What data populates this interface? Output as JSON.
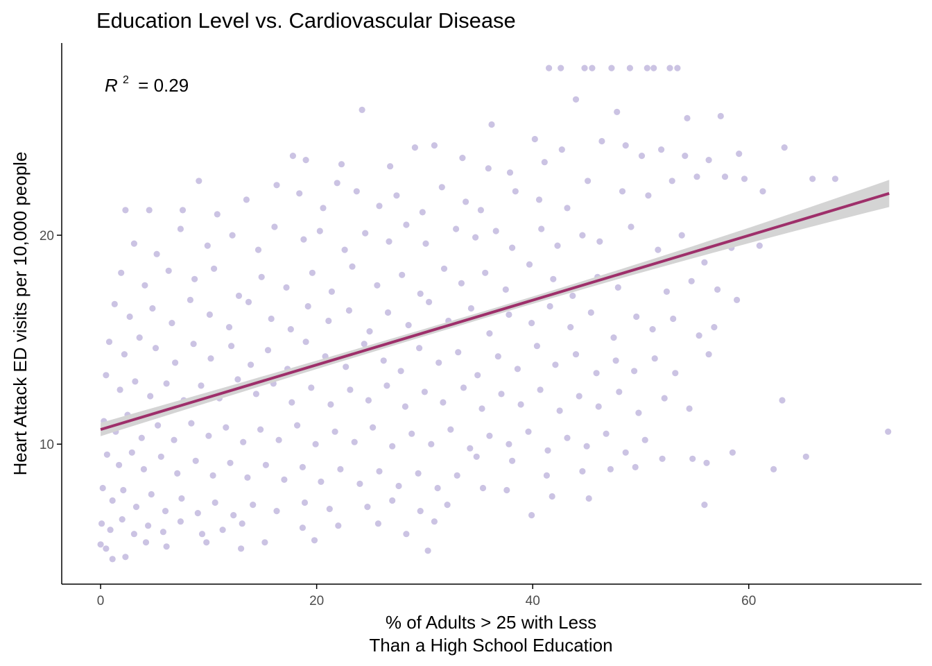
{
  "chart_data": {
    "type": "scatter",
    "title": "Education Level vs. Cardiovascular Disease",
    "xlabel_lines": [
      "% of Adults > 25 with Less",
      "Than a High School Education"
    ],
    "ylabel": "Heart Attack ED visits per 10,000 people",
    "xlim": [
      -3.6,
      76.0
    ],
    "ylim": [
      3.3,
      29.2
    ],
    "x_ticks": [
      0,
      20,
      40,
      60
    ],
    "y_ticks": [
      10,
      20
    ],
    "grid": false,
    "annotation": {
      "symbol": "R",
      "superscript": "2",
      "text": "= 0.29"
    },
    "point_color": "#cbc3e3",
    "trend_color": "#9e2f6a",
    "band_color": "#d4d4d4",
    "trend": {
      "x_start": 0,
      "y_start": 10.7,
      "x_end": 73,
      "y_end": 22.0,
      "band_half_width_start": 0.32,
      "band_half_width_mid": 0.17,
      "band_half_width_end": 0.65
    },
    "points": [
      [
        41.5,
        28.0
      ],
      [
        42.6,
        28.0
      ],
      [
        44.8,
        28.0
      ],
      [
        45.5,
        28.0
      ],
      [
        47.3,
        28.0
      ],
      [
        49.0,
        28.0
      ],
      [
        50.6,
        28.0
      ],
      [
        51.2,
        28.0
      ],
      [
        52.7,
        28.0
      ],
      [
        53.4,
        28.0
      ],
      [
        24.2,
        26.0
      ],
      [
        44.0,
        26.5
      ],
      [
        47.8,
        25.9
      ],
      [
        36.2,
        25.3
      ],
      [
        54.3,
        25.6
      ],
      [
        57.4,
        25.7
      ],
      [
        63.3,
        24.2
      ],
      [
        17.8,
        23.8
      ],
      [
        19.0,
        23.6
      ],
      [
        22.3,
        23.4
      ],
      [
        26.8,
        23.3
      ],
      [
        29.1,
        24.2
      ],
      [
        30.9,
        24.3
      ],
      [
        33.5,
        23.7
      ],
      [
        35.9,
        23.2
      ],
      [
        37.9,
        23.0
      ],
      [
        40.2,
        24.6
      ],
      [
        41.1,
        23.5
      ],
      [
        42.7,
        24.1
      ],
      [
        46.4,
        24.5
      ],
      [
        48.6,
        24.3
      ],
      [
        50.1,
        23.8
      ],
      [
        51.9,
        24.1
      ],
      [
        54.1,
        23.8
      ],
      [
        56.3,
        23.6
      ],
      [
        59.1,
        23.9
      ],
      [
        2.3,
        21.2
      ],
      [
        4.5,
        21.2
      ],
      [
        7.6,
        21.2
      ],
      [
        9.1,
        22.6
      ],
      [
        10.8,
        21.0
      ],
      [
        13.5,
        21.7
      ],
      [
        16.3,
        22.4
      ],
      [
        18.4,
        22.0
      ],
      [
        20.6,
        21.3
      ],
      [
        21.9,
        22.5
      ],
      [
        23.7,
        22.1
      ],
      [
        25.8,
        21.4
      ],
      [
        27.4,
        21.9
      ],
      [
        29.8,
        21.1
      ],
      [
        31.6,
        22.3
      ],
      [
        33.8,
        21.6
      ],
      [
        35.2,
        21.2
      ],
      [
        38.4,
        22.1
      ],
      [
        40.6,
        21.7
      ],
      [
        43.2,
        21.3
      ],
      [
        45.1,
        22.6
      ],
      [
        48.3,
        22.1
      ],
      [
        50.7,
        21.9
      ],
      [
        52.9,
        22.6
      ],
      [
        55.2,
        22.8
      ],
      [
        57.8,
        22.8
      ],
      [
        59.6,
        22.7
      ],
      [
        61.3,
        22.1
      ],
      [
        65.9,
        22.7
      ],
      [
        68.0,
        22.7
      ],
      [
        3.1,
        19.6
      ],
      [
        5.2,
        19.1
      ],
      [
        7.4,
        20.3
      ],
      [
        9.9,
        19.5
      ],
      [
        12.2,
        20.0
      ],
      [
        14.6,
        19.3
      ],
      [
        16.1,
        20.4
      ],
      [
        18.8,
        19.8
      ],
      [
        20.3,
        20.2
      ],
      [
        22.6,
        19.3
      ],
      [
        24.5,
        20.1
      ],
      [
        26.7,
        19.7
      ],
      [
        28.3,
        20.5
      ],
      [
        30.1,
        19.6
      ],
      [
        32.9,
        20.3
      ],
      [
        34.7,
        19.9
      ],
      [
        36.6,
        20.2
      ],
      [
        38.1,
        19.4
      ],
      [
        40.8,
        20.3
      ],
      [
        42.3,
        19.5
      ],
      [
        44.6,
        20.0
      ],
      [
        46.2,
        19.7
      ],
      [
        49.1,
        20.4
      ],
      [
        51.6,
        19.3
      ],
      [
        53.8,
        20.0
      ],
      [
        55.9,
        18.7
      ],
      [
        58.4,
        19.4
      ],
      [
        61.0,
        19.5
      ],
      [
        1.9,
        18.2
      ],
      [
        4.1,
        17.6
      ],
      [
        6.3,
        18.3
      ],
      [
        8.7,
        17.9
      ],
      [
        10.5,
        18.4
      ],
      [
        12.8,
        17.1
      ],
      [
        14.9,
        18.0
      ],
      [
        17.2,
        17.5
      ],
      [
        19.6,
        18.2
      ],
      [
        21.4,
        17.3
      ],
      [
        23.3,
        18.5
      ],
      [
        25.6,
        17.6
      ],
      [
        27.9,
        18.1
      ],
      [
        29.6,
        17.2
      ],
      [
        31.8,
        18.4
      ],
      [
        33.4,
        17.7
      ],
      [
        35.6,
        18.2
      ],
      [
        37.5,
        17.4
      ],
      [
        39.7,
        18.6
      ],
      [
        41.9,
        17.9
      ],
      [
        43.7,
        17.1
      ],
      [
        46.0,
        18.0
      ],
      [
        47.9,
        17.5
      ],
      [
        50.2,
        18.4
      ],
      [
        52.4,
        17.3
      ],
      [
        54.7,
        17.8
      ],
      [
        57.1,
        17.4
      ],
      [
        58.9,
        16.9
      ],
      [
        1.3,
        16.7
      ],
      [
        2.7,
        16.1
      ],
      [
        4.8,
        16.5
      ],
      [
        6.6,
        15.8
      ],
      [
        8.3,
        16.9
      ],
      [
        10.1,
        16.2
      ],
      [
        11.9,
        15.6
      ],
      [
        13.7,
        16.8
      ],
      [
        15.8,
        16.0
      ],
      [
        17.6,
        15.5
      ],
      [
        19.2,
        16.6
      ],
      [
        21.1,
        15.9
      ],
      [
        23.0,
        16.4
      ],
      [
        24.9,
        15.4
      ],
      [
        26.6,
        16.3
      ],
      [
        28.5,
        15.7
      ],
      [
        30.4,
        16.8
      ],
      [
        32.2,
        15.9
      ],
      [
        34.3,
        16.5
      ],
      [
        36.0,
        15.3
      ],
      [
        37.8,
        16.2
      ],
      [
        39.9,
        15.8
      ],
      [
        41.6,
        16.6
      ],
      [
        43.5,
        15.6
      ],
      [
        45.4,
        16.3
      ],
      [
        47.5,
        15.1
      ],
      [
        49.6,
        16.1
      ],
      [
        51.1,
        15.5
      ],
      [
        53.0,
        16.0
      ],
      [
        55.4,
        15.2
      ],
      [
        56.8,
        15.6
      ],
      [
        0.8,
        14.9
      ],
      [
        2.2,
        14.3
      ],
      [
        3.6,
        15.1
      ],
      [
        5.1,
        14.6
      ],
      [
        6.9,
        13.9
      ],
      [
        8.6,
        14.8
      ],
      [
        10.2,
        14.1
      ],
      [
        12.1,
        14.7
      ],
      [
        13.9,
        13.8
      ],
      [
        15.5,
        14.5
      ],
      [
        17.3,
        13.6
      ],
      [
        19.0,
        14.9
      ],
      [
        20.8,
        14.2
      ],
      [
        22.7,
        13.7
      ],
      [
        24.4,
        14.8
      ],
      [
        26.2,
        14.0
      ],
      [
        27.8,
        13.5
      ],
      [
        29.5,
        14.6
      ],
      [
        31.3,
        13.9
      ],
      [
        33.1,
        14.4
      ],
      [
        34.9,
        13.3
      ],
      [
        36.8,
        14.2
      ],
      [
        38.6,
        13.6
      ],
      [
        40.4,
        14.7
      ],
      [
        42.1,
        13.8
      ],
      [
        44.0,
        14.3
      ],
      [
        45.9,
        13.4
      ],
      [
        47.7,
        14.0
      ],
      [
        49.4,
        13.5
      ],
      [
        51.3,
        14.1
      ],
      [
        53.2,
        13.4
      ],
      [
        56.3,
        14.3
      ],
      [
        0.5,
        13.3
      ],
      [
        1.8,
        12.6
      ],
      [
        3.2,
        13.0
      ],
      [
        4.6,
        12.3
      ],
      [
        6.1,
        12.9
      ],
      [
        7.7,
        12.1
      ],
      [
        9.3,
        12.8
      ],
      [
        11.0,
        12.2
      ],
      [
        12.7,
        13.1
      ],
      [
        14.4,
        12.4
      ],
      [
        16.0,
        12.9
      ],
      [
        17.7,
        12.0
      ],
      [
        19.5,
        12.7
      ],
      [
        21.3,
        11.9
      ],
      [
        23.1,
        12.6
      ],
      [
        24.8,
        12.1
      ],
      [
        26.5,
        12.8
      ],
      [
        28.2,
        11.8
      ],
      [
        30.0,
        12.5
      ],
      [
        31.7,
        12.0
      ],
      [
        33.6,
        12.7
      ],
      [
        35.3,
        11.7
      ],
      [
        37.1,
        12.4
      ],
      [
        38.9,
        11.9
      ],
      [
        40.7,
        12.6
      ],
      [
        42.5,
        11.6
      ],
      [
        44.3,
        12.3
      ],
      [
        46.1,
        11.8
      ],
      [
        48.0,
        12.5
      ],
      [
        49.8,
        11.5
      ],
      [
        52.2,
        12.2
      ],
      [
        54.5,
        11.7
      ],
      [
        63.1,
        12.1
      ],
      [
        0.3,
        11.1
      ],
      [
        1.4,
        10.6
      ],
      [
        2.5,
        11.4
      ],
      [
        3.8,
        10.3
      ],
      [
        5.3,
        10.9
      ],
      [
        6.8,
        10.2
      ],
      [
        8.4,
        11.0
      ],
      [
        10.0,
        10.4
      ],
      [
        11.6,
        10.8
      ],
      [
        13.2,
        10.1
      ],
      [
        14.8,
        10.7
      ],
      [
        16.5,
        10.2
      ],
      [
        18.2,
        10.9
      ],
      [
        19.9,
        10.0
      ],
      [
        21.7,
        10.6
      ],
      [
        23.5,
        10.1
      ],
      [
        25.2,
        10.8
      ],
      [
        27.0,
        9.9
      ],
      [
        28.8,
        10.5
      ],
      [
        30.6,
        10.0
      ],
      [
        32.4,
        10.7
      ],
      [
        34.2,
        9.8
      ],
      [
        36.0,
        10.4
      ],
      [
        37.8,
        10.0
      ],
      [
        39.6,
        10.6
      ],
      [
        41.4,
        9.7
      ],
      [
        43.2,
        10.3
      ],
      [
        45.0,
        9.9
      ],
      [
        46.8,
        10.5
      ],
      [
        48.6,
        9.6
      ],
      [
        50.4,
        10.2
      ],
      [
        72.9,
        10.6
      ],
      [
        0.6,
        9.5
      ],
      [
        1.7,
        9.0
      ],
      [
        2.9,
        9.6
      ],
      [
        4.0,
        8.8
      ],
      [
        5.6,
        9.4
      ],
      [
        7.1,
        8.6
      ],
      [
        8.8,
        9.2
      ],
      [
        10.4,
        8.5
      ],
      [
        12.0,
        9.1
      ],
      [
        13.6,
        8.4
      ],
      [
        15.3,
        9.0
      ],
      [
        17.0,
        8.3
      ],
      [
        18.7,
        8.9
      ],
      [
        20.4,
        8.2
      ],
      [
        22.2,
        8.8
      ],
      [
        24.0,
        8.1
      ],
      [
        25.8,
        8.7
      ],
      [
        27.6,
        8.0
      ],
      [
        29.4,
        8.6
      ],
      [
        31.2,
        7.9
      ],
      [
        33.0,
        8.5
      ],
      [
        34.8,
        9.4
      ],
      [
        38.1,
        9.2
      ],
      [
        41.3,
        8.5
      ],
      [
        44.6,
        8.7
      ],
      [
        47.2,
        8.8
      ],
      [
        49.5,
        8.9
      ],
      [
        52.0,
        9.3
      ],
      [
        54.8,
        9.3
      ],
      [
        56.1,
        9.1
      ],
      [
        58.5,
        9.6
      ],
      [
        62.3,
        8.8
      ],
      [
        65.3,
        9.4
      ],
      [
        0.2,
        7.9
      ],
      [
        1.1,
        7.3
      ],
      [
        2.1,
        7.8
      ],
      [
        3.3,
        7.0
      ],
      [
        4.7,
        7.6
      ],
      [
        6.0,
        6.8
      ],
      [
        7.5,
        7.4
      ],
      [
        9.0,
        6.7
      ],
      [
        10.6,
        7.2
      ],
      [
        12.3,
        6.6
      ],
      [
        14.1,
        7.1
      ],
      [
        16.3,
        6.8
      ],
      [
        18.9,
        7.2
      ],
      [
        21.2,
        6.9
      ],
      [
        24.7,
        7.0
      ],
      [
        27.0,
        7.3
      ],
      [
        29.6,
        6.8
      ],
      [
        32.1,
        7.1
      ],
      [
        35.4,
        7.9
      ],
      [
        37.6,
        7.8
      ],
      [
        39.9,
        6.6
      ],
      [
        41.8,
        7.5
      ],
      [
        45.2,
        7.4
      ],
      [
        55.9,
        7.1
      ],
      [
        0.1,
        6.2
      ],
      [
        0.9,
        5.9
      ],
      [
        2.0,
        6.4
      ],
      [
        3.1,
        5.7
      ],
      [
        4.4,
        6.1
      ],
      [
        5.8,
        5.8
      ],
      [
        7.4,
        6.3
      ],
      [
        9.4,
        5.7
      ],
      [
        11.3,
        5.9
      ],
      [
        13.1,
        6.2
      ],
      [
        18.7,
        6.0
      ],
      [
        22.0,
        6.1
      ],
      [
        25.7,
        6.2
      ],
      [
        28.3,
        5.7
      ],
      [
        30.9,
        6.3
      ],
      [
        0.0,
        5.2
      ],
      [
        0.5,
        5.0
      ],
      [
        1.1,
        4.5
      ],
      [
        2.3,
        4.6
      ],
      [
        4.2,
        5.3
      ],
      [
        6.1,
        5.1
      ],
      [
        9.8,
        5.3
      ],
      [
        13.0,
        5.0
      ],
      [
        15.2,
        5.3
      ],
      [
        19.8,
        5.4
      ],
      [
        30.3,
        4.9
      ]
    ]
  }
}
